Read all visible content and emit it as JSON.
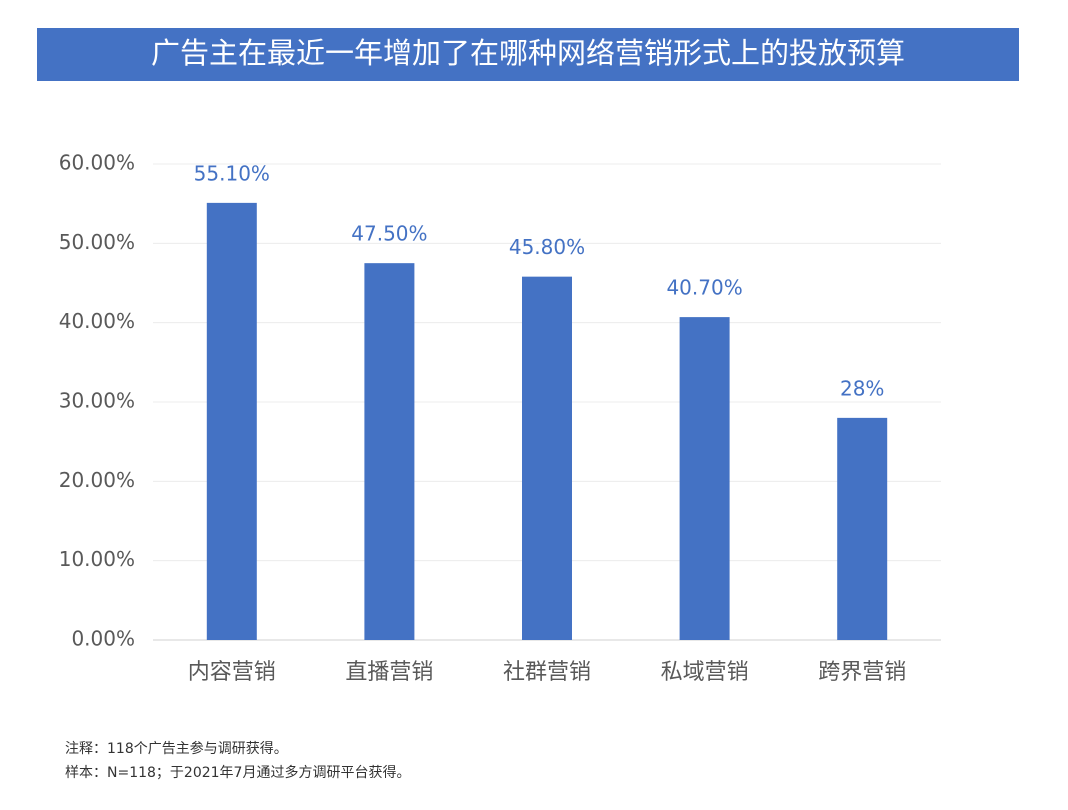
{
  "chart_data": {
    "type": "bar",
    "title": "广告主在最近一年增加了在哪种网络营销形式上的投放预算",
    "categories": [
      "内容营销",
      "直播营销",
      "社群营销",
      "私域营销",
      "跨界营销"
    ],
    "values": [
      55.1,
      47.5,
      45.8,
      40.7,
      28
    ],
    "value_labels": [
      "55.10%",
      "47.50%",
      "45.80%",
      "40.70%",
      "28%"
    ],
    "color": "#4472c4",
    "ylim": [
      0,
      60
    ],
    "yticks": [
      {
        "value": 0,
        "label": "0.00%"
      },
      {
        "value": 10,
        "label": "10.00%"
      },
      {
        "value": 20,
        "label": "20.00%"
      },
      {
        "value": 30,
        "label": "30.00%"
      },
      {
        "value": 40,
        "label": "40.00%"
      },
      {
        "value": 50,
        "label": "50.00%"
      },
      {
        "value": 60,
        "label": "60.00%"
      }
    ],
    "grid": true,
    "notes": [
      "注释：118个广告主参与调研获得。",
      "样本：N=118；于2021年7月通过多方调研平台获得。"
    ]
  }
}
